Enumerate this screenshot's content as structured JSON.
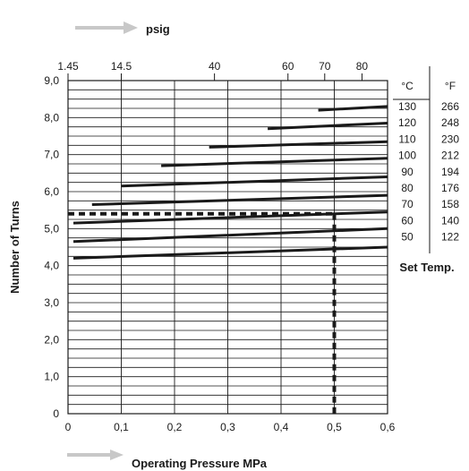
{
  "chart_data": {
    "type": "line",
    "title": "",
    "xlabel": "Operating Pressure MPa",
    "ylabel": "Number of Turns",
    "secondary_xlabel": "psig",
    "xlim": [
      0,
      0.6
    ],
    "ylim": [
      0,
      9
    ],
    "x_ticks": [
      "0",
      "0,1",
      "0,2",
      "0,3",
      "0,4",
      "0,5",
      "0,6"
    ],
    "y_ticks": [
      "0",
      "1,0",
      "2,0",
      "3,0",
      "4,0",
      "5,0",
      "6,0",
      "7,0",
      "8,0",
      "9,0"
    ],
    "secondary_x_ticks": [
      {
        "label": "1.45",
        "mpa": 0
      },
      {
        "label": "14.5",
        "mpa": 0.1
      },
      {
        "label": "40",
        "mpa": 0.275
      },
      {
        "label": "60",
        "mpa": 0.413
      },
      {
        "label": "70",
        "mpa": 0.482
      },
      {
        "label": "80",
        "mpa": 0.552
      }
    ],
    "grid": true,
    "minor_y_step": 0.25,
    "series": [
      {
        "name": "50 °C / 122 °F",
        "x": [
          0.01,
          0.6
        ],
        "y": [
          4.2,
          4.5
        ]
      },
      {
        "name": "60 °C / 140 °F",
        "x": [
          0.01,
          0.6
        ],
        "y": [
          4.65,
          5.0
        ]
      },
      {
        "name": "70 °C / 158 °F",
        "x": [
          0.01,
          0.6
        ],
        "y": [
          5.15,
          5.45
        ]
      },
      {
        "name": "80 °C / 176 °F",
        "x": [
          0.045,
          0.6
        ],
        "y": [
          5.65,
          5.9
        ]
      },
      {
        "name": "90 °C / 194 °F",
        "x": [
          0.1,
          0.6
        ],
        "y": [
          6.15,
          6.4
        ]
      },
      {
        "name": "100 °C / 212 °F",
        "x": [
          0.175,
          0.6
        ],
        "y": [
          6.7,
          6.9
        ]
      },
      {
        "name": "110 °C / 230 °F",
        "x": [
          0.265,
          0.6
        ],
        "y": [
          7.2,
          7.35
        ]
      },
      {
        "name": "120 °C / 248 °F",
        "x": [
          0.375,
          0.6
        ],
        "y": [
          7.7,
          7.85
        ]
      },
      {
        "name": "130 °C / 266 °F",
        "x": [
          0.47,
          0.6
        ],
        "y": [
          8.2,
          8.3
        ]
      }
    ],
    "reference_lines": {
      "horizontal_y": 5.4,
      "vertical_x": 0.5,
      "style": "dashed"
    },
    "legend_table": {
      "header_c": "°C",
      "header_f": "°F",
      "rows": [
        {
          "c": "130",
          "f": "266"
        },
        {
          "c": "120",
          "f": "248"
        },
        {
          "c": "110",
          "f": "230"
        },
        {
          "c": "100",
          "f": "212"
        },
        {
          "c": "90",
          "f": "194"
        },
        {
          "c": "80",
          "f": "176"
        },
        {
          "c": "70",
          "f": "158"
        },
        {
          "c": "60",
          "f": "140"
        },
        {
          "c": "50",
          "f": "122"
        }
      ],
      "caption": "Set Temp."
    },
    "colors": {
      "line": "#1a1a1a",
      "grid": "#1a1a1a",
      "arrow": "#c8c8c8"
    }
  }
}
